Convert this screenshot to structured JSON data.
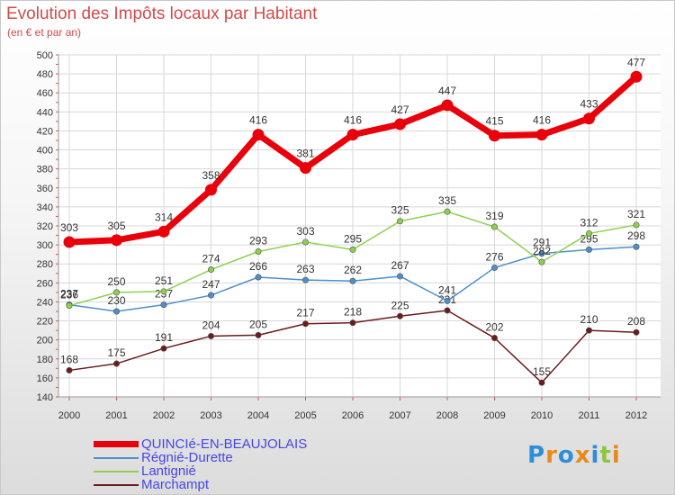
{
  "header": {
    "title": "Evolution des Impôts locaux par Habitant",
    "subtitle": "(en € et par an)"
  },
  "chart_data": {
    "type": "line",
    "title": "Evolution des Impôts locaux par Habitant",
    "subtitle": "(en € et par an)",
    "xlabel": "",
    "ylabel": "",
    "ylim": [
      140,
      500
    ],
    "yticks": [
      140,
      160,
      180,
      200,
      220,
      240,
      260,
      280,
      300,
      320,
      340,
      360,
      380,
      400,
      420,
      440,
      460,
      480,
      500
    ],
    "categories": [
      "2000",
      "2001",
      "2002",
      "2003",
      "2004",
      "2005",
      "2006",
      "2007",
      "2008",
      "2009",
      "2010",
      "2011",
      "2012"
    ],
    "grid": true,
    "legend_position": "bottom-left",
    "series": [
      {
        "name": "QUINCIé-EN-BEAUJOLAIS",
        "color": "#e8000a",
        "values": [
          303,
          305,
          314,
          358,
          416,
          381,
          416,
          427,
          447,
          415,
          416,
          433,
          477
        ]
      },
      {
        "name": "Régnié-Durette",
        "color": "#4d8fc9",
        "values": [
          237,
          230,
          237,
          247,
          266,
          263,
          262,
          267,
          241,
          276,
          291,
          295,
          298
        ]
      },
      {
        "name": "Lantignié",
        "color": "#8fcf50",
        "values": [
          236,
          250,
          251,
          274,
          293,
          303,
          295,
          325,
          335,
          319,
          282,
          312,
          321
        ]
      },
      {
        "name": "Marchampt",
        "color": "#6b1b1b",
        "values": [
          168,
          175,
          191,
          204,
          205,
          217,
          218,
          225,
          231,
          202,
          155,
          210,
          208
        ]
      }
    ]
  },
  "branding": {
    "logo_text": "Proxiti",
    "logo_letters": [
      "P",
      "r",
      "o",
      "x",
      "i",
      "t",
      "i"
    ],
    "logo_colors": [
      "#2e8fd8",
      "#e88a1a",
      "#2e8fd8",
      "#e88a1a",
      "#2e8fd8",
      "#8cc63f",
      "#e88a1a"
    ]
  }
}
